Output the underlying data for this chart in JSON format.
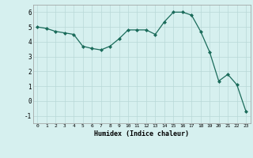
{
  "x": [
    0,
    1,
    2,
    3,
    4,
    5,
    6,
    7,
    8,
    9,
    10,
    11,
    12,
    13,
    14,
    15,
    16,
    17,
    18,
    19,
    20,
    21,
    22,
    23
  ],
  "y": [
    5.0,
    4.9,
    4.7,
    4.6,
    4.5,
    3.7,
    3.55,
    3.45,
    3.7,
    4.2,
    4.8,
    4.8,
    4.8,
    4.5,
    5.35,
    6.0,
    6.0,
    5.8,
    4.7,
    3.3,
    1.35,
    1.8,
    1.1,
    -0.7
  ],
  "xlim": [
    -0.5,
    23.5
  ],
  "ylim": [
    -1.5,
    6.5
  ],
  "yticks": [
    -1,
    0,
    1,
    2,
    3,
    4,
    5,
    6
  ],
  "xticks": [
    0,
    1,
    2,
    3,
    4,
    5,
    6,
    7,
    8,
    9,
    10,
    11,
    12,
    13,
    14,
    15,
    16,
    17,
    18,
    19,
    20,
    21,
    22,
    23
  ],
  "xlabel": "Humidex (Indice chaleur)",
  "line_color": "#1a6b5a",
  "marker": "D",
  "marker_size": 2.0,
  "bg_color": "#d6f0ef",
  "grid_color": "#b8d8d8",
  "grid_color_minor": "#c8e4e4"
}
